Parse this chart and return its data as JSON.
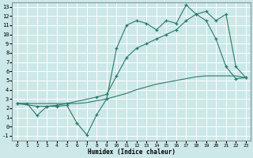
{
  "xlabel": "Humidex (Indice chaleur)",
  "bg_color": "#cce8e8",
  "grid_color": "#ffffff",
  "line_color": "#2a7a6a",
  "xlim": [
    -0.5,
    23.5
  ],
  "ylim": [
    -1.5,
    13.5
  ],
  "xticks": [
    0,
    1,
    2,
    3,
    4,
    5,
    6,
    7,
    8,
    9,
    10,
    11,
    12,
    13,
    14,
    15,
    16,
    17,
    18,
    19,
    20,
    21,
    22,
    23
  ],
  "yticks": [
    -1,
    0,
    1,
    2,
    3,
    4,
    5,
    6,
    7,
    8,
    9,
    10,
    11,
    12,
    13
  ],
  "line1_x": [
    0,
    1,
    2,
    3,
    4,
    5,
    6,
    7,
    8,
    9,
    10,
    11,
    12,
    13,
    14,
    15,
    16,
    17,
    18,
    19,
    20,
    21,
    22,
    23
  ],
  "line1_y": [
    2.5,
    2.5,
    2.5,
    2.5,
    2.5,
    2.5,
    2.5,
    2.6,
    2.8,
    3.0,
    3.3,
    3.6,
    4.0,
    4.3,
    4.6,
    4.8,
    5.0,
    5.2,
    5.4,
    5.5,
    5.5,
    5.5,
    5.5,
    5.3
  ],
  "line2_x": [
    0,
    1,
    2,
    3,
    4,
    5,
    6,
    7,
    8,
    9,
    10,
    11,
    12,
    13,
    14,
    15,
    16,
    17,
    18,
    19,
    20,
    21,
    22,
    23
  ],
  "line2_y": [
    2.5,
    2.5,
    1.2,
    2.2,
    2.2,
    2.3,
    0.4,
    -0.9,
    1.3,
    3.0,
    8.5,
    11.0,
    11.5,
    11.2,
    10.5,
    11.5,
    11.2,
    13.2,
    12.2,
    11.5,
    9.5,
    6.5,
    5.2,
    5.3
  ],
  "line3_x": [
    0,
    2,
    3,
    4,
    5,
    8,
    9,
    10,
    11,
    12,
    13,
    14,
    15,
    16,
    17,
    18,
    19,
    20,
    21,
    22,
    23
  ],
  "line3_y": [
    2.5,
    2.2,
    2.2,
    2.3,
    2.5,
    3.2,
    3.5,
    5.5,
    7.5,
    8.5,
    9.0,
    9.5,
    10.0,
    10.5,
    11.5,
    12.2,
    12.5,
    11.5,
    12.2,
    6.5,
    5.3
  ]
}
